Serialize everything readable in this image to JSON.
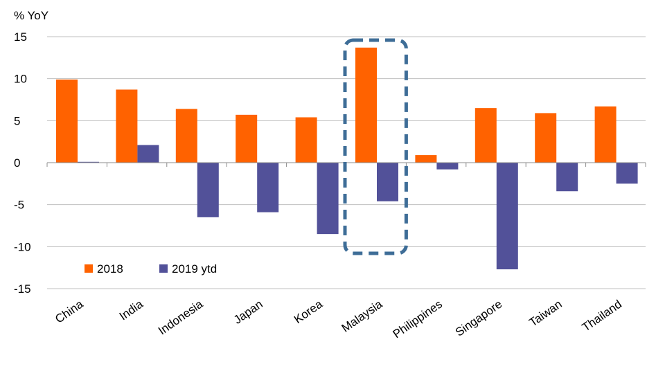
{
  "chart_data": {
    "type": "bar",
    "unit_label": "% YoY",
    "categories": [
      "China",
      "India",
      "Indonesia",
      "Japan",
      "Korea",
      "Malaysia",
      "Philippines",
      "Singapore",
      "Taiwan",
      "Thailand"
    ],
    "series": [
      {
        "name": "2018",
        "color": "#ff6200",
        "values": [
          9.9,
          8.7,
          6.4,
          5.7,
          5.4,
          13.7,
          0.9,
          6.5,
          5.9,
          6.7
        ]
      },
      {
        "name": "2019 ytd",
        "color": "#525199",
        "values": [
          0.1,
          2.1,
          -6.5,
          -5.9,
          -8.5,
          -4.6,
          -0.8,
          -12.7,
          -3.4,
          -2.5
        ]
      }
    ],
    "ylim": [
      -15,
      15
    ],
    "yticks": [
      15,
      10,
      5,
      0,
      -5,
      -10,
      -15
    ],
    "grid": true,
    "legend_position": "bottom-left",
    "highlight": {
      "category": "Malaysia",
      "color": "#3e6d97",
      "style": "dashed"
    }
  }
}
